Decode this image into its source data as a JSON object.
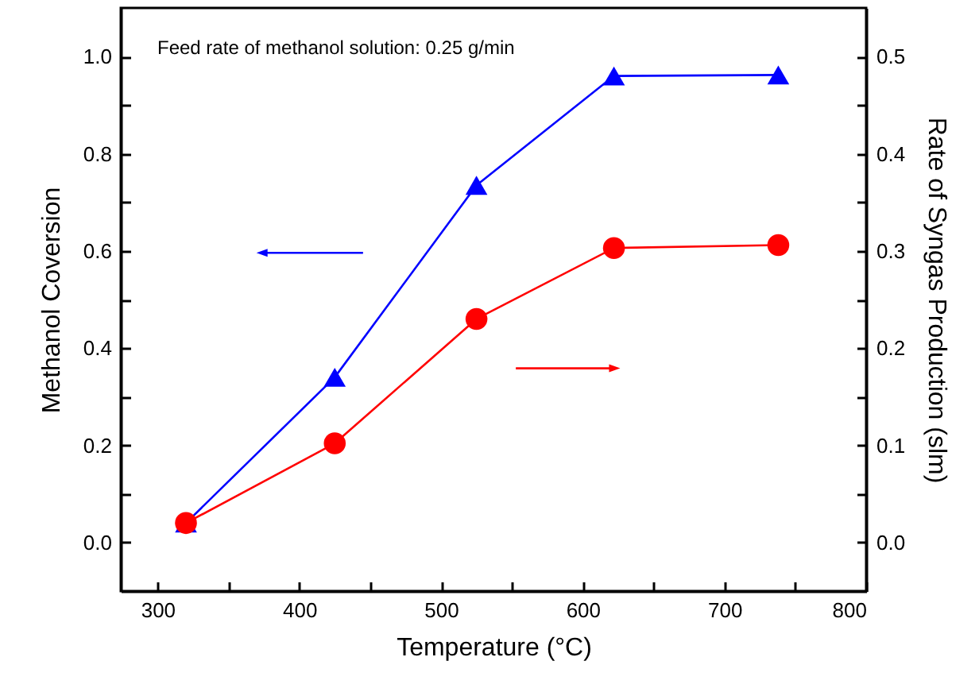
{
  "chart_data": {
    "type": "line",
    "xlabel": "Temperature (°C)",
    "ylabel": "Methanol Coversion",
    "y2label": "Rate of Syngas Production (slm)",
    "annotations": [
      "Feed rate of methanol solution: 0.25 g/min"
    ],
    "x": [
      320,
      425,
      525,
      622,
      738
    ],
    "series": [
      {
        "color": "#0000ff",
        "marker": "triangle",
        "values": [
          0.04,
          0.34,
          0.735,
          0.96,
          0.962
        ]
      },
      {
        "color": "#ff0000",
        "marker": "circle",
        "axis": "y2",
        "values": [
          0.02,
          0.102,
          0.23,
          0.303,
          0.306
        ]
      }
    ],
    "xlim": [
      274,
      800
    ],
    "xticks": [
      300,
      {
        "value": 350,
        "label": null
      },
      400,
      {
        "value": 450,
        "label": null
      },
      500,
      {
        "value": 550,
        "label": null
      },
      600,
      {
        "value": 650,
        "label": null
      },
      700,
      {
        "value": 750,
        "label": null
      },
      800
    ],
    "ylim": [
      -0.1,
      1.1
    ],
    "yticks": [
      {
        "value": 0,
        "label": "0.0"
      },
      {
        "value": 0.1,
        "label": null
      },
      0.2,
      {
        "value": 0.3,
        "label": null
      },
      0.4,
      {
        "value": 0.5,
        "label": null
      },
      0.6,
      {
        "value": 0.7,
        "label": null
      },
      0.8,
      {
        "value": 0.9,
        "label": null
      },
      {
        "value": 1,
        "label": "1.0"
      }
    ],
    "y2lim": [
      -0.05,
      0.55
    ],
    "y2ticks": [
      {
        "value": 0,
        "label": "0.0"
      },
      {
        "value": 0.05,
        "label": null
      },
      0.1,
      {
        "value": 0.15,
        "label": null
      },
      0.2,
      {
        "value": 0.25,
        "label": null
      },
      0.3,
      {
        "value": 0.35,
        "label": null
      },
      0.4,
      {
        "value": 0.45,
        "label": null
      },
      0.5
    ],
    "grid": false
  }
}
